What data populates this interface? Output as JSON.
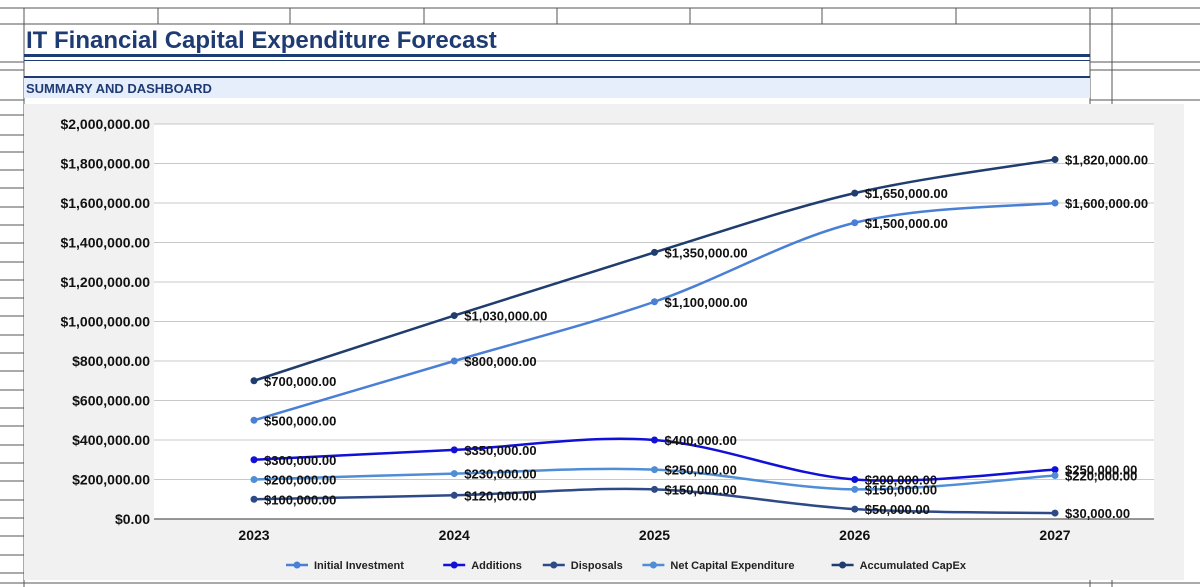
{
  "header": {
    "title": "IT Financial Capital Expenditure Forecast",
    "section": "SUMMARY AND DASHBOARD"
  },
  "colors": {
    "title": "#1f3b73",
    "band": "#e6edfb",
    "panel": "#f1f1f1"
  },
  "chart_data": {
    "type": "line",
    "categories": [
      "2023",
      "2024",
      "2025",
      "2026",
      "2027"
    ],
    "ylim": [
      0,
      2000000
    ],
    "y_ticks": [
      "$0.00",
      "$200,000.00",
      "$400,000.00",
      "$600,000.00",
      "$800,000.00",
      "$1,000,000.00",
      "$1,200,000.00",
      "$1,400,000.00",
      "$1,600,000.00",
      "$1,800,000.00",
      "$2,000,000.00"
    ],
    "grid": true,
    "legend_position": "bottom",
    "smooth": true,
    "series": [
      {
        "name": "Initial Investment",
        "color": "#4a7fd6",
        "values": [
          500000,
          800000,
          1100000,
          1500000,
          1600000
        ],
        "labels": [
          "$500,000.00",
          "$800,000.00",
          "$1,100,000.00",
          "$1,500,000.00",
          "$1,600,000.00"
        ]
      },
      {
        "name": "Additions",
        "color": "#1010d8",
        "values": [
          300000,
          350000,
          400000,
          200000,
          250000
        ],
        "labels": [
          "$300,000.00",
          "$350,000.00",
          "$400,000.00",
          "$200,000.00",
          "$250,000.00"
        ]
      },
      {
        "name": "Disposals",
        "color": "#2e4a86",
        "values": [
          100000,
          120000,
          150000,
          50000,
          30000
        ],
        "labels": [
          "$100,000.00",
          "$120,000.00",
          "$150,000.00",
          "$50,000.00",
          "$30,000.00"
        ]
      },
      {
        "name": "Net Capital Expenditure",
        "color": "#4f8ed6",
        "values": [
          200000,
          230000,
          250000,
          150000,
          220000
        ],
        "labels": [
          "$200,000.00",
          "$230,000.00",
          "$250,000.00",
          "$150,000.00",
          "$220,000.00"
        ]
      },
      {
        "name": "Accumulated CapEx",
        "color": "#1f3d6e",
        "values": [
          700000,
          1030000,
          1350000,
          1650000,
          1820000
        ],
        "labels": [
          "$700,000.00",
          "$1,030,000.00",
          "$1,350,000.00",
          "$1,650,000.00",
          "$1,820,000.00"
        ]
      }
    ]
  }
}
